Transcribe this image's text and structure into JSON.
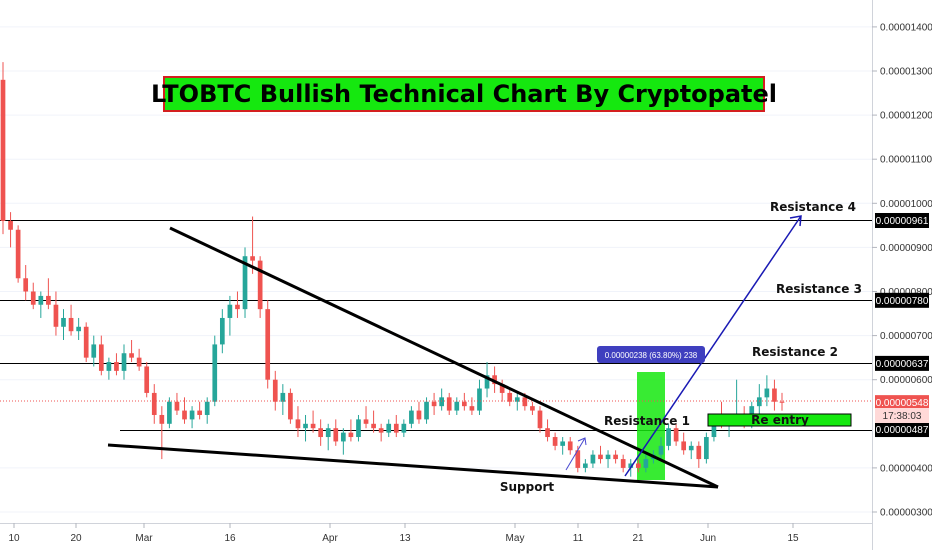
{
  "title": "LTOBTC Bullish Technical Chart By Cryptopatel",
  "chart_data": {
    "type": "candlestick",
    "symbol": "LTOBTC",
    "x_tick_labels": [
      "10",
      "20",
      "Mar",
      "16",
      "Apr",
      "13",
      "May",
      "11",
      "21",
      "Jun",
      "15"
    ],
    "y_tick_labels": [
      "0.00001400",
      "0.00001300",
      "0.00001200",
      "0.00001100",
      "0.00001000",
      "0.00000900",
      "0.00000800",
      "0.00000700",
      "0.00000600",
      "0.00000400",
      "0.00000300"
    ],
    "ylim": [
      2.8e-06,
      1.45e-05
    ],
    "price_labels": [
      {
        "value": 9.61e-06,
        "text": "0.00000961",
        "bg": "#000000",
        "fg": "#ffffff"
      },
      {
        "value": 7.8e-06,
        "text": "0.00000780",
        "bg": "#000000",
        "fg": "#ffffff"
      },
      {
        "value": 6.37e-06,
        "text": "0.00000637",
        "bg": "#000000",
        "fg": "#ffffff"
      },
      {
        "value": 5.48e-06,
        "text": "0.00000548",
        "bg": "#ef5350",
        "fg": "#ffffff"
      },
      {
        "value": 4.87e-06,
        "text": "0.00000487",
        "bg": "#000000",
        "fg": "#ffffff"
      }
    ],
    "countdown": "17:38:03",
    "horizontal_levels": [
      {
        "value": 9.61e-06,
        "label": "Resistance 4"
      },
      {
        "value": 7.8e-06,
        "label": "Resistance 3"
      },
      {
        "value": 6.37e-06,
        "label": "Resistance 2"
      },
      {
        "value": 4.87e-06,
        "label": "Resistance 1"
      }
    ],
    "annotations": {
      "support": "Support",
      "re_entry": "Re entry",
      "measure_box": "0.00000238 (63.80%) 238"
    },
    "colors": {
      "up": "#26a69a",
      "down": "#ef5350",
      "highlight": "#15e80f",
      "arrow": "#1a1ab4",
      "measure": "#3f3fbf"
    },
    "candles": [
      [
        1.28e-05,
        1.32e-05,
        9.3e-06,
        9.6e-06
      ],
      [
        9.6e-06,
        9.8e-06,
        9e-06,
        9.4e-06
      ],
      [
        9.4e-06,
        9.5e-06,
        8.2e-06,
        8.3e-06
      ],
      [
        8.3e-06,
        8.6e-06,
        7.8e-06,
        8e-06
      ],
      [
        8e-06,
        8.2e-06,
        7.6e-06,
        7.7e-06
      ],
      [
        7.7e-06,
        8e-06,
        7.4e-06,
        7.9e-06
      ],
      [
        7.9e-06,
        8.3e-06,
        7.6e-06,
        7.7e-06
      ],
      [
        7.7e-06,
        8e-06,
        7e-06,
        7.2e-06
      ],
      [
        7.2e-06,
        7.6e-06,
        6.9e-06,
        7.4e-06
      ],
      [
        7.4e-06,
        7.7e-06,
        7e-06,
        7.1e-06
      ],
      [
        7.1e-06,
        7.4e-06,
        6.9e-06,
        7.2e-06
      ],
      [
        7.2e-06,
        7.3e-06,
        6.4e-06,
        6.5e-06
      ],
      [
        6.5e-06,
        7e-06,
        6.3e-06,
        6.8e-06
      ],
      [
        6.8e-06,
        7e-06,
        6.1e-06,
        6.2e-06
      ],
      [
        6.2e-06,
        6.5e-06,
        6e-06,
        6.4e-06
      ],
      [
        6.4e-06,
        6.6e-06,
        6.1e-06,
        6.2e-06
      ],
      [
        6.2e-06,
        6.8e-06,
        6e-06,
        6.6e-06
      ],
      [
        6.6e-06,
        6.9e-06,
        6.4e-06,
        6.5e-06
      ],
      [
        6.5e-06,
        6.7e-06,
        6.2e-06,
        6.3e-06
      ],
      [
        6.3e-06,
        6.4e-06,
        5.6e-06,
        5.7e-06
      ],
      [
        5.7e-06,
        5.9e-06,
        5e-06,
        5.2e-06
      ],
      [
        5.2e-06,
        5.4e-06,
        4.2e-06,
        5e-06
      ],
      [
        5e-06,
        5.6e-06,
        4.9e-06,
        5.5e-06
      ],
      [
        5.5e-06,
        5.7e-06,
        5.2e-06,
        5.3e-06
      ],
      [
        5.3e-06,
        5.6e-06,
        5e-06,
        5.1e-06
      ],
      [
        5.1e-06,
        5.4e-06,
        4.9e-06,
        5.3e-06
      ],
      [
        5.3e-06,
        5.5e-06,
        5.1e-06,
        5.2e-06
      ],
      [
        5.2e-06,
        5.6e-06,
        5e-06,
        5.5e-06
      ],
      [
        5.5e-06,
        7e-06,
        5.4e-06,
        6.8e-06
      ],
      [
        6.8e-06,
        7.6e-06,
        6.6e-06,
        7.4e-06
      ],
      [
        7.4e-06,
        7.9e-06,
        7e-06,
        7.7e-06
      ],
      [
        7.7e-06,
        8e-06,
        7.4e-06,
        7.6e-06
      ],
      [
        7.6e-06,
        9e-06,
        7.4e-06,
        8.8e-06
      ],
      [
        8.8e-06,
        9.7e-06,
        8.4e-06,
        8.7e-06
      ],
      [
        8.7e-06,
        8.8e-06,
        7.4e-06,
        7.6e-06
      ],
      [
        7.6e-06,
        7.8e-06,
        5.8e-06,
        6e-06
      ],
      [
        6e-06,
        6.2e-06,
        5.3e-06,
        5.5e-06
      ],
      [
        5.5e-06,
        5.9e-06,
        5.2e-06,
        5.7e-06
      ],
      [
        5.7e-06,
        5.8e-06,
        5e-06,
        5.1e-06
      ],
      [
        5.1e-06,
        5.4e-06,
        4.7e-06,
        4.9e-06
      ],
      [
        4.9e-06,
        5.2e-06,
        4.6e-06,
        5e-06
      ],
      [
        5e-06,
        5.3e-06,
        4.8e-06,
        4.9e-06
      ],
      [
        4.9e-06,
        5.1e-06,
        4.5e-06,
        4.7e-06
      ],
      [
        4.7e-06,
        5e-06,
        4.4e-06,
        4.9e-06
      ],
      [
        4.9e-06,
        5.1e-06,
        4.5e-06,
        4.6e-06
      ],
      [
        4.6e-06,
        4.9e-06,
        4.3e-06,
        4.8e-06
      ],
      [
        4.8e-06,
        5.1e-06,
        4.6e-06,
        4.7e-06
      ],
      [
        4.7e-06,
        5.2e-06,
        4.6e-06,
        5.1e-06
      ],
      [
        5.1e-06,
        5.4e-06,
        4.9e-06,
        5e-06
      ],
      [
        5e-06,
        5.3e-06,
        4.8e-06,
        4.9e-06
      ],
      [
        4.9e-06,
        5e-06,
        4.6e-06,
        4.8e-06
      ],
      [
        4.8e-06,
        5.1e-06,
        4.7e-06,
        5e-06
      ],
      [
        5e-06,
        5.2e-06,
        4.7e-06,
        4.8e-06
      ],
      [
        4.8e-06,
        5.1e-06,
        4.7e-06,
        5e-06
      ],
      [
        5e-06,
        5.4e-06,
        4.9e-06,
        5.3e-06
      ],
      [
        5.3e-06,
        5.5e-06,
        5e-06,
        5.1e-06
      ],
      [
        5.1e-06,
        5.6e-06,
        5e-06,
        5.5e-06
      ],
      [
        5.5e-06,
        5.7e-06,
        5.2e-06,
        5.4e-06
      ],
      [
        5.4e-06,
        5.8e-06,
        5.3e-06,
        5.6e-06
      ],
      [
        5.6e-06,
        5.7e-06,
        5.2e-06,
        5.3e-06
      ],
      [
        5.3e-06,
        5.6e-06,
        5.2e-06,
        5.5e-06
      ],
      [
        5.5e-06,
        5.7e-06,
        5.3e-06,
        5.4e-06
      ],
      [
        5.4e-06,
        5.6e-06,
        5.2e-06,
        5.3e-06
      ],
      [
        5.3e-06,
        6e-06,
        5.2e-06,
        5.8e-06
      ],
      [
        5.8e-06,
        6.4e-06,
        5.6e-06,
        6.1e-06
      ],
      [
        6.1e-06,
        6.3e-06,
        5.7e-06,
        5.9e-06
      ],
      [
        5.9e-06,
        6e-06,
        5.5e-06,
        5.7e-06
      ],
      [
        5.7e-06,
        5.8e-06,
        5.4e-06,
        5.5e-06
      ],
      [
        5.5e-06,
        5.7e-06,
        5.3e-06,
        5.6e-06
      ],
      [
        5.6e-06,
        5.7e-06,
        5.3e-06,
        5.4e-06
      ],
      [
        5.4e-06,
        5.5e-06,
        5.2e-06,
        5.3e-06
      ],
      [
        5.3e-06,
        5.4e-06,
        4.8e-06,
        4.9e-06
      ],
      [
        4.9e-06,
        5.1e-06,
        4.6e-06,
        4.7e-06
      ],
      [
        4.7e-06,
        4.8e-06,
        4.4e-06,
        4.5e-06
      ],
      [
        4.5e-06,
        4.7e-06,
        4.3e-06,
        4.6e-06
      ],
      [
        4.6e-06,
        4.7e-06,
        4.3e-06,
        4.4e-06
      ],
      [
        4.4e-06,
        4.5e-06,
        3.9e-06,
        4e-06
      ],
      [
        4e-06,
        4.2e-06,
        3.9e-06,
        4.1e-06
      ],
      [
        4.1e-06,
        4.4e-06,
        4e-06,
        4.3e-06
      ],
      [
        4.3e-06,
        4.5e-06,
        4.1e-06,
        4.2e-06
      ],
      [
        4.2e-06,
        4.4e-06,
        4e-06,
        4.3e-06
      ],
      [
        4.3e-06,
        4.4e-06,
        4.1e-06,
        4.2e-06
      ],
      [
        4.2e-06,
        4.3e-06,
        3.9e-06,
        4e-06
      ],
      [
        4e-06,
        4.2e-06,
        3.8e-06,
        4.1e-06
      ],
      [
        4.1e-06,
        4.2e-06,
        3.9e-06,
        4e-06
      ],
      [
        4e-06,
        4.3e-06,
        3.9e-06,
        4.2e-06
      ],
      [
        4.2e-06,
        4.4e-06,
        4.1e-06,
        4.3e-06
      ],
      [
        4.3e-06,
        4.7e-06,
        4.2e-06,
        4.5e-06
      ],
      [
        4.5e-06,
        5e-06,
        4.4e-06,
        4.9e-06
      ],
      [
        4.9e-06,
        5e-06,
        4.5e-06,
        4.6e-06
      ],
      [
        4.6e-06,
        4.8e-06,
        4.3e-06,
        4.4e-06
      ],
      [
        4.4e-06,
        4.6e-06,
        4.2e-06,
        4.5e-06
      ],
      [
        4.5e-06,
        4.6e-06,
        4e-06,
        4.2e-06
      ],
      [
        4.2e-06,
        4.8e-06,
        4.1e-06,
        4.7e-06
      ],
      [
        4.7e-06,
        5.2e-06,
        4.6e-06,
        5.1e-06
      ],
      [
        5.1e-06,
        5.5e-06,
        4.9e-06,
        5e-06
      ],
      [
        5e-06,
        5.2e-06,
        4.7e-06,
        5.1e-06
      ],
      [
        5.1e-06,
        6e-06,
        5e-06,
        5.2e-06
      ],
      [
        5.2e-06,
        5.4e-06,
        4.9e-06,
        5e-06
      ],
      [
        5e-06,
        5.5e-06,
        4.9e-06,
        5.4e-06
      ],
      [
        5.4e-06,
        5.9e-06,
        5.2e-06,
        5.6e-06
      ],
      [
        5.6e-06,
        6.1e-06,
        5.4e-06,
        5.8e-06
      ],
      [
        5.8e-06,
        6e-06,
        5.3e-06,
        5.5e-06
      ],
      [
        5.5e-06,
        5.7e-06,
        5.3e-06,
        5.48e-06
      ]
    ]
  }
}
